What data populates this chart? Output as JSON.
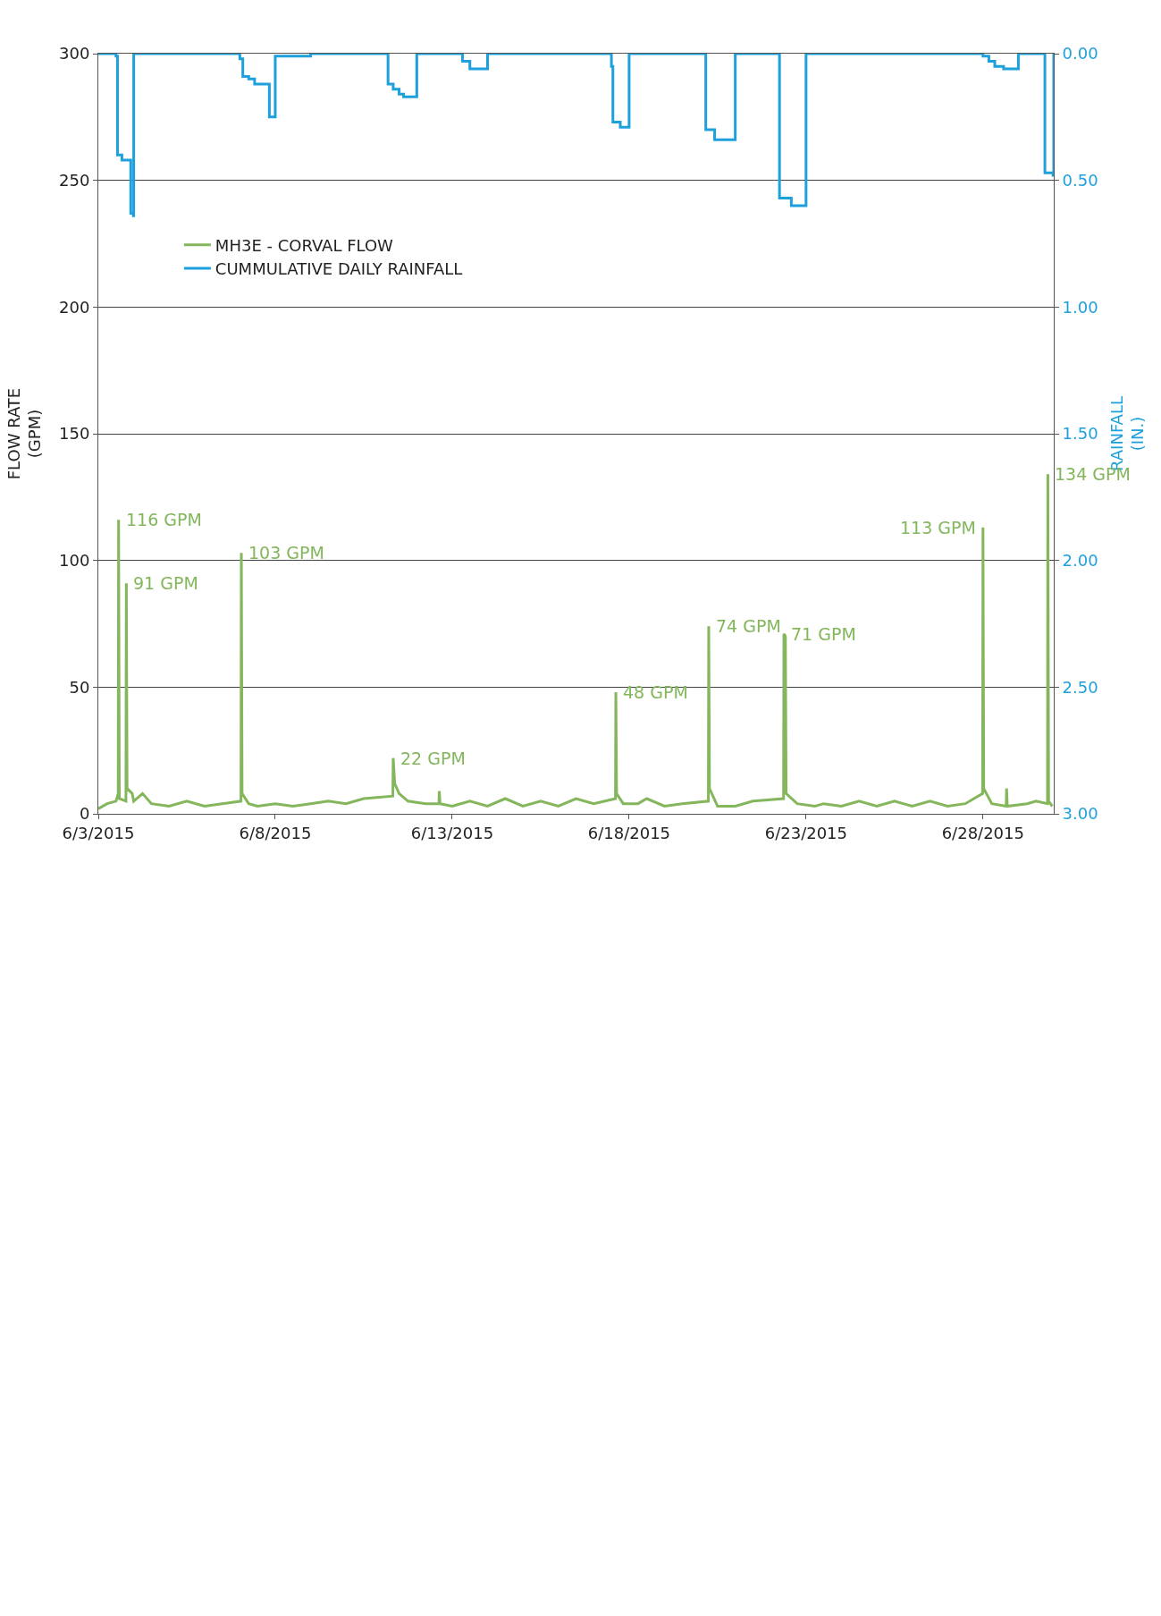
{
  "chart_data": {
    "type": "line",
    "ylabel": "FLOW RATE\n(GPM)",
    "y2label": "RAINFALL\n(IN.)",
    "xlim": [
      "2015-06-03",
      "2015-06-30"
    ],
    "xticks": [
      {
        "value": "2015-06-03",
        "label": "6/3/2015"
      },
      {
        "value": "2015-06-08",
        "label": "6/8/2015"
      },
      {
        "value": "2015-06-13",
        "label": "6/13/2015"
      },
      {
        "value": "2015-06-18",
        "label": "6/18/2015"
      },
      {
        "value": "2015-06-23",
        "label": "6/23/2015"
      },
      {
        "value": "2015-06-28",
        "label": "6/28/2015"
      }
    ],
    "ylim": [
      0,
      300
    ],
    "yticks": [
      0,
      50,
      100,
      150,
      200,
      250,
      300
    ],
    "y2lim": [
      3.0,
      0.0
    ],
    "y2ticks": [
      {
        "value": 0,
        "label": "0.00"
      },
      {
        "value": 0.5,
        "label": "0.50"
      },
      {
        "value": 1.0,
        "label": "1.00"
      },
      {
        "value": 1.5,
        "label": "1.50"
      },
      {
        "value": 2.0,
        "label": "2.00"
      },
      {
        "value": 2.5,
        "label": "2.50"
      },
      {
        "value": 3.0,
        "label": "3.00"
      }
    ],
    "grid": "y",
    "legend": "top left",
    "series": [
      {
        "name": "MH3E - CORVAL FLOW",
        "color": "#84b65c",
        "x": [
          "2015-06-03T00:00",
          "2015-06-03T06:00",
          "2015-06-03T12:00",
          "2015-06-03T13:30",
          "2015-06-03T13:45",
          "2015-06-03T14:15",
          "2015-06-03T18:45",
          "2015-06-03T19:00",
          "2015-06-03T19:30",
          "2015-06-03T23:00",
          "2015-06-04T00:00",
          "2015-06-04T06:00",
          "2015-06-04T12:00",
          "2015-06-05T00:00",
          "2015-06-05T12:00",
          "2015-06-06T00:00",
          "2015-06-06T12:00",
          "2015-06-07T00:45",
          "2015-06-07T01:00",
          "2015-06-07T01:30",
          "2015-06-07T06:00",
          "2015-06-07T12:00",
          "2015-06-08T00:00",
          "2015-06-08T12:00",
          "2015-06-09T00:00",
          "2015-06-09T12:00",
          "2015-06-10T00:00",
          "2015-06-10T12:00",
          "2015-06-11T07:45",
          "2015-06-11T08:00",
          "2015-06-11T09:00",
          "2015-06-11T12:00",
          "2015-06-11T18:00",
          "2015-06-12T06:00",
          "2015-06-12T15:00",
          "2015-06-12T15:15",
          "2015-06-12T15:45",
          "2015-06-13T00:00",
          "2015-06-13T12:00",
          "2015-06-14T00:00",
          "2015-06-14T12:00",
          "2015-06-15T00:00",
          "2015-06-15T12:00",
          "2015-06-16T00:00",
          "2015-06-16T12:00",
          "2015-06-17T00:00",
          "2015-06-17T14:45",
          "2015-06-17T15:00",
          "2015-06-17T15:30",
          "2015-06-17T20:00",
          "2015-06-18T06:00",
          "2015-06-18T12:00",
          "2015-06-19T00:00",
          "2015-06-19T12:00",
          "2015-06-20T05:45",
          "2015-06-20T06:00",
          "2015-06-20T06:30",
          "2015-06-20T12:00",
          "2015-06-21T00:00",
          "2015-06-21T12:00",
          "2015-06-22T08:45",
          "2015-06-22T09:00",
          "2015-06-22T10:00",
          "2015-06-22T10:30",
          "2015-06-22T18:00",
          "2015-06-23T06:00",
          "2015-06-23T12:00",
          "2015-06-24T00:00",
          "2015-06-24T12:00",
          "2015-06-25T00:00",
          "2015-06-25T12:00",
          "2015-06-26T00:00",
          "2015-06-26T12:00",
          "2015-06-27T00:00",
          "2015-06-27T12:00",
          "2015-06-27T23:45",
          "2015-06-28T00:00",
          "2015-06-28T00:30",
          "2015-06-28T06:00",
          "2015-06-28T15:45",
          "2015-06-28T16:00",
          "2015-06-28T16:30",
          "2015-06-29T06:00",
          "2015-06-29T12:00",
          "2015-06-29T19:45",
          "2015-06-29T20:00",
          "2015-06-29T20:30",
          "2015-06-29T23:00"
        ],
        "values": [
          2,
          4,
          5,
          8,
          116,
          6,
          5,
          91,
          10,
          8,
          5,
          8,
          4,
          3,
          5,
          3,
          4,
          5,
          103,
          8,
          4,
          3,
          4,
          3,
          4,
          5,
          4,
          6,
          7,
          22,
          12,
          8,
          5,
          4,
          4,
          9,
          4,
          3,
          5,
          3,
          6,
          3,
          5,
          3,
          6,
          4,
          6,
          48,
          8,
          4,
          4,
          6,
          3,
          4,
          5,
          74,
          10,
          3,
          3,
          5,
          6,
          71,
          70,
          8,
          4,
          3,
          4,
          3,
          5,
          3,
          5,
          3,
          5,
          3,
          4,
          8,
          113,
          10,
          4,
          3,
          10,
          3,
          4,
          5,
          4,
          134,
          5,
          3
        ]
      },
      {
        "name": "CUMMULATIVE DAILY RAINFALL",
        "color": "#1ea0dc",
        "type": "step",
        "axis": "y2",
        "x": [
          "2015-06-03T00:00",
          "2015-06-03T12:00",
          "2015-06-03T13:00",
          "2015-06-03T16:00",
          "2015-06-03T22:00",
          "2015-06-03T23:45",
          "2015-06-04T00:00",
          "2015-06-07T00:00",
          "2015-06-07T02:00",
          "2015-06-07T06:00",
          "2015-06-07T10:00",
          "2015-06-07T20:00",
          "2015-06-08T00:00",
          "2015-06-09T00:00",
          "2015-06-11T04:30",
          "2015-06-11T08:00",
          "2015-06-11T12:00",
          "2015-06-11T15:00",
          "2015-06-12T00:00",
          "2015-06-13T07:00",
          "2015-06-13T12:00",
          "2015-06-14T00:00",
          "2015-06-17T12:00",
          "2015-06-17T13:00",
          "2015-06-17T18:00",
          "2015-06-18T00:00",
          "2015-06-20T04:00",
          "2015-06-20T10:00",
          "2015-06-21T00:00",
          "2015-06-22T06:00",
          "2015-06-22T14:00",
          "2015-06-23T00:00",
          "2015-06-28T00:00",
          "2015-06-28T04:00",
          "2015-06-28T08:00",
          "2015-06-28T14:00",
          "2015-06-29T00:00",
          "2015-06-29T18:00",
          "2015-06-29T23:30",
          "2015-06-30T00:00"
        ],
        "values": [
          0,
          0.01,
          0.4,
          0.42,
          0.63,
          0.64,
          0,
          0.02,
          0.09,
          0.1,
          0.12,
          0.25,
          0.01,
          0,
          0.12,
          0.14,
          0.16,
          0.17,
          0,
          0.03,
          0.06,
          0,
          0.05,
          0.27,
          0.29,
          0,
          0.3,
          0.34,
          0,
          0.57,
          0.6,
          0,
          0.01,
          0.03,
          0.05,
          0.06,
          0,
          0.47,
          0.48,
          0
        ]
      }
    ],
    "annotations": [
      {
        "text": "116 GPM",
        "x": "2015-06-03T13:45",
        "y": 116
      },
      {
        "text": "91 GPM",
        "x": "2015-06-03T19:00",
        "y": 91
      },
      {
        "text": "103 GPM",
        "x": "2015-06-07T01:00",
        "y": 103
      },
      {
        "text": "22 GPM",
        "x": "2015-06-11T08:00",
        "y": 22
      },
      {
        "text": "48 GPM",
        "x": "2015-06-17T15:00",
        "y": 48
      },
      {
        "text": "74 GPM",
        "x": "2015-06-20T06:00",
        "y": 74
      },
      {
        "text": "71 GPM",
        "x": "2015-06-22T09:00",
        "y": 71
      },
      {
        "text": "113 GPM",
        "x": "2015-06-28T00:00",
        "y": 113
      },
      {
        "text": "134 GPM",
        "x": "2015-06-29T20:00",
        "y": 134
      }
    ]
  }
}
